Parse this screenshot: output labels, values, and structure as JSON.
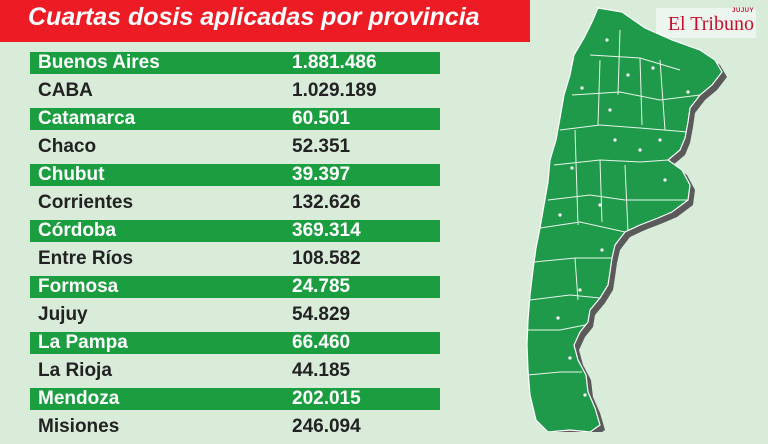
{
  "header": {
    "title": "Cuartas dosis aplicadas por provincia"
  },
  "brand": {
    "name": "El Tribuno",
    "edition": "JUJUY"
  },
  "colors": {
    "header_red": "#ed1c24",
    "row_green": "#1a9e3f",
    "map_green": "#1f9a4a",
    "background": "#d8ecd9"
  },
  "provinces": [
    {
      "name": "Buenos Aires",
      "value": "1.881.486"
    },
    {
      "name": "CABA",
      "value": "1.029.189"
    },
    {
      "name": "Catamarca",
      "value": "60.501"
    },
    {
      "name": "Chaco",
      "value": "52.351"
    },
    {
      "name": "Chubut",
      "value": "39.397"
    },
    {
      "name": "Corrientes",
      "value": "132.626"
    },
    {
      "name": "Córdoba",
      "value": "369.314"
    },
    {
      "name": "Entre Ríos",
      "value": "108.582"
    },
    {
      "name": "Formosa",
      "value": "24.785"
    },
    {
      "name": "Jujuy",
      "value": "54.829"
    },
    {
      "name": "La Pampa",
      "value": "66.460"
    },
    {
      "name": "La Rioja",
      "value": "44.185"
    },
    {
      "name": "Mendoza",
      "value": "202.015"
    },
    {
      "name": "Misiones",
      "value": "246.094"
    }
  ]
}
